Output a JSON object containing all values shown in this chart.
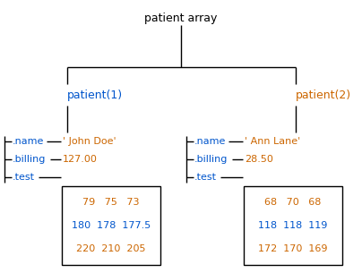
{
  "title": "patient array",
  "title_color": "#000000",
  "p1_label": "patient(1)",
  "p2_label": "patient(2)",
  "p1_color": "#0055cc",
  "p2_color": "#cc6600",
  "field_color": "#0055cc",
  "value_color": "#cc6600",
  "p1_name_val": "' John Doe'",
  "p1_billing_val": "127.00",
  "p2_name_val": "' Ann Lane'",
  "p2_billing_val": "28.50",
  "p1_test_data": [
    "79   75   73",
    "180  178  177.5",
    "220  210  205"
  ],
  "p2_test_data": [
    "68   70   68",
    "118  118  119",
    "172  170  169"
  ],
  "test_row_colors_p1": [
    "#cc6600",
    "#0055cc",
    "#cc6600"
  ],
  "test_row_colors_p2": [
    "#cc6600",
    "#0055cc",
    "#cc6600"
  ],
  "bg_color": "#ffffff",
  "fig_w": 4.04,
  "fig_h": 3.05,
  "dpi": 100
}
